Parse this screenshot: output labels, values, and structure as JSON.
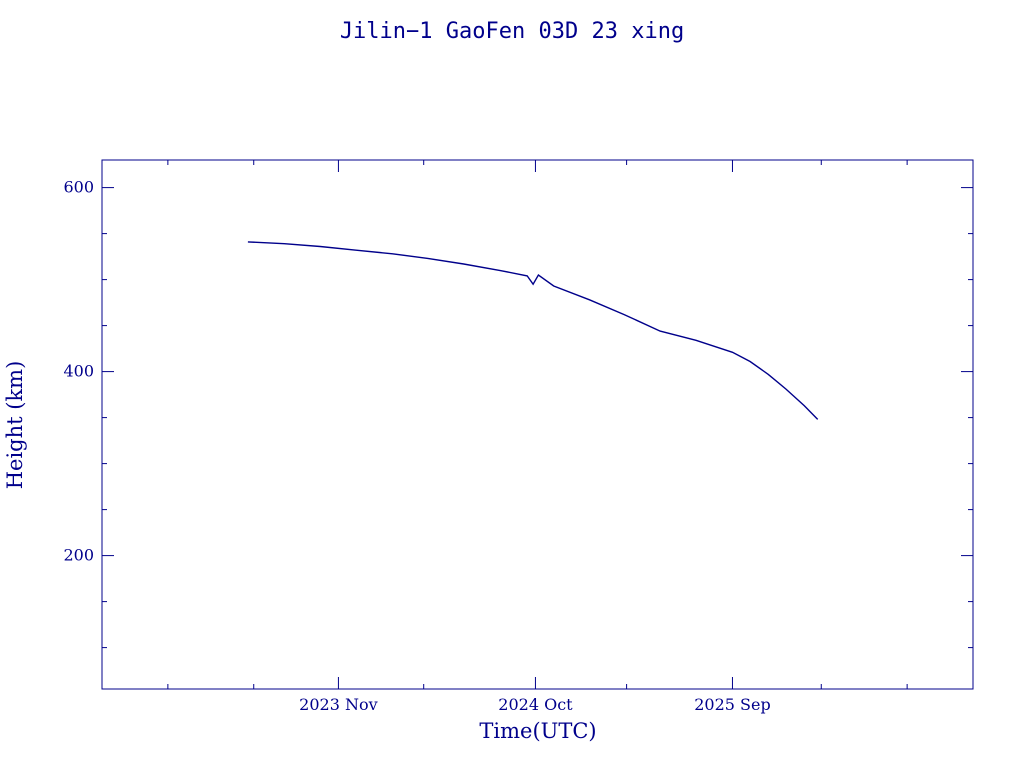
{
  "chart_data": {
    "type": "line",
    "title": "Jilin−1 GaoFen 03D 23 xing",
    "xlabel": "Time(UTC)",
    "ylabel": "Height (km)",
    "color": "#00008b",
    "xlim": [
      "2022-09-25",
      "2026-10-15"
    ],
    "ylim": [
      55,
      630
    ],
    "y_ticks": [
      200,
      400,
      600
    ],
    "y_minor_step": 50,
    "x_ticks": [
      {
        "date": "2023-11-01",
        "label": "2023 Nov"
      },
      {
        "date": "2024-10-01",
        "label": "2024 Oct"
      },
      {
        "date": "2025-09-01",
        "label": "2025 Sep"
      }
    ],
    "x_minor_ticks": [
      "2023-01-15",
      "2023-06-10",
      "2024-03-25",
      "2025-03-05",
      "2026-01-30",
      "2026-06-25"
    ],
    "series": [
      {
        "x": [
          "2023-05-31",
          "2023-08-01",
          "2023-10-01",
          "2023-12-01",
          "2024-02-01",
          "2024-04-01",
          "2024-06-01",
          "2024-08-01",
          "2024-09-17",
          "2024-09-27",
          "2024-10-06",
          "2024-11-01",
          "2025-01-01",
          "2025-03-01",
          "2025-05-01",
          "2025-07-01",
          "2025-09-01",
          "2025-10-01",
          "2025-11-01",
          "2025-12-01",
          "2026-01-01",
          "2026-01-24"
        ],
        "y": [
          541,
          539,
          536,
          532,
          528,
          523,
          517,
          510,
          504,
          495,
          505,
          493,
          478,
          462,
          444,
          434,
          421,
          411,
          397,
          381,
          363,
          348
        ]
      }
    ]
  }
}
